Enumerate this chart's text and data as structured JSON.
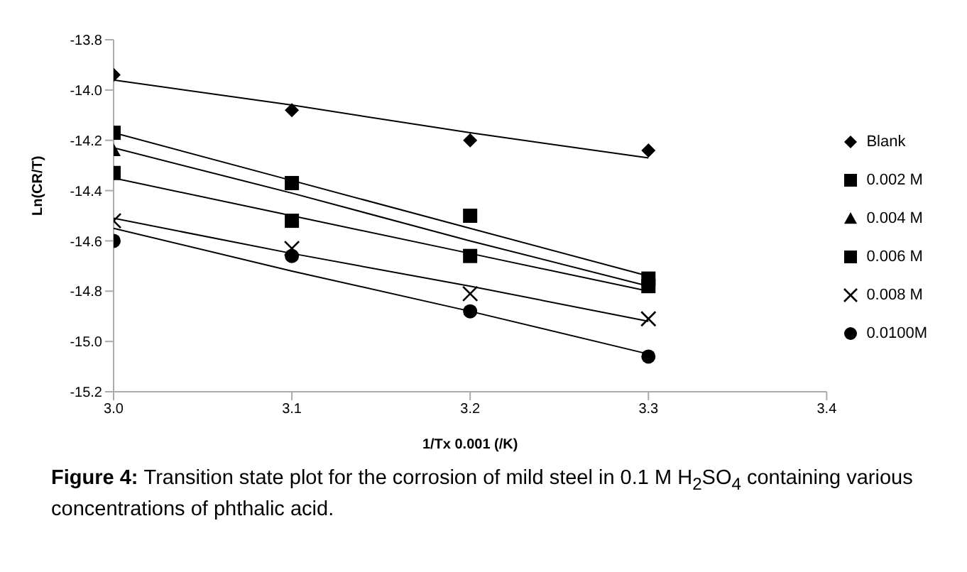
{
  "chart_data": {
    "type": "scatter",
    "xlabel": "1/Tx 0.001 (/K)",
    "ylabel": "Ln(CR/T)",
    "annotations": [
      "Figure 4:",
      "Transition state plot for the corrosion of mild steel in 0.1 M H$_{2}$SO$_{4}$ containing various concentrations of phthalic acid."
    ],
    "x": [
      3.0,
      3.1,
      3.2,
      3.3
    ],
    "series": [
      {
        "name": "Blank",
        "color": "#000000",
        "marker": "diamond",
        "values": [
          -13.94,
          -14.08,
          -14.2,
          -14.24
        ]
      },
      {
        "name": "0.002 M",
        "color": "#000000",
        "marker": "square",
        "values": [
          -14.17,
          -14.37,
          -14.5,
          -14.75
        ]
      },
      {
        "name": "0.004 M",
        "color": "#000000",
        "marker": "triangle",
        "values": [
          -14.24,
          null,
          null,
          null
        ]
      },
      {
        "name": "0.006 M",
        "color": "#000000",
        "marker": "square",
        "values": [
          -14.33,
          -14.52,
          -14.66,
          -14.78
        ]
      },
      {
        "name": "0.008 M",
        "color": "#000000",
        "marker": "cross",
        "values": [
          -14.52,
          -14.63,
          -14.81,
          -14.91
        ]
      },
      {
        "name": "0.0100M",
        "color": "#000000",
        "marker": "circle",
        "values": [
          -14.6,
          -14.66,
          -14.88,
          -15.06
        ]
      },
      {
        "type": "line",
        "color": "#000000",
        "marker": "none",
        "values": [
          -13.96,
          -14.06,
          -14.17,
          -14.27
        ]
      },
      {
        "type": "line",
        "color": "#000000",
        "marker": "none",
        "values": [
          -14.17,
          -14.36,
          -14.55,
          -14.74
        ]
      },
      {
        "type": "line",
        "color": "#000000",
        "marker": "none",
        "values": [
          -14.23,
          -14.41,
          -14.6,
          -14.78
        ]
      },
      {
        "type": "line",
        "color": "#000000",
        "marker": "none",
        "values": [
          -14.35,
          -14.5,
          -14.65,
          -14.8
        ]
      },
      {
        "type": "line",
        "color": "#000000",
        "marker": "none",
        "values": [
          -14.51,
          -14.65,
          -14.78,
          -14.92
        ]
      },
      {
        "type": "line",
        "color": "#000000",
        "marker": "none",
        "values": [
          -14.55,
          -14.72,
          -14.88,
          -15.05
        ]
      }
    ],
    "xlim": [
      3.0,
      3.4
    ],
    "xticks": [
      {
        "value": 3.0,
        "label": "3.0"
      },
      {
        "value": 3.1,
        "label": "3.1"
      },
      {
        "value": 3.2,
        "label": "3.2"
      },
      {
        "value": 3.3,
        "label": "3.3"
      },
      {
        "value": 3.4,
        "label": "3.4"
      }
    ],
    "ylim": [
      -15.2,
      -13.8
    ],
    "yticks": [
      {
        "value": -15.2,
        "label": "-15.2"
      },
      {
        "value": -15.0,
        "label": "-15.0"
      },
      {
        "value": -14.8,
        "label": "-14.8"
      },
      {
        "value": -14.6,
        "label": "-14.6"
      },
      {
        "value": -14.4,
        "label": "-14.4"
      },
      {
        "value": -14.2,
        "label": "-14.2"
      },
      {
        "value": -14.0,
        "label": "-14.0"
      },
      {
        "value": -13.8,
        "label": "-13.8"
      }
    ],
    "grid": false,
    "legend": "right",
    "line_style": "solid"
  }
}
